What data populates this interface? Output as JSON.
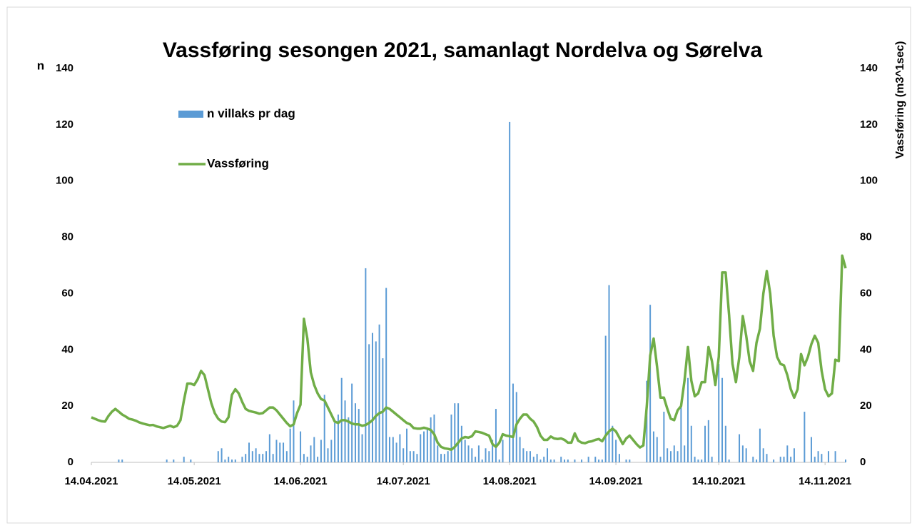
{
  "chart_data": {
    "type": "bar-line",
    "title": "Vassføring sesongen 2021, samanlagt Nordelva og Sørelva",
    "y_label": "n",
    "y2_label": "Vassføring (m3^1sec)",
    "xlim": [
      "14.04.2021",
      "20.11.2021"
    ],
    "xticks": [
      "14.04.2021",
      "14.05.2021",
      "14.06.2021",
      "14.07.2021",
      "14.08.2021",
      "14.09.2021",
      "14.10.2021",
      "14.11.2021"
    ],
    "ylim": [
      0,
      140
    ],
    "yticks": [
      0,
      20,
      40,
      60,
      80,
      100,
      120,
      140
    ],
    "y2lim": [
      0,
      140
    ],
    "y2ticks": [
      0,
      20,
      40,
      60,
      80,
      100,
      120,
      140
    ],
    "legend": "upper left",
    "grid": false,
    "x": [
      "14.04.2021",
      "15.04.2021",
      "16.04.2021",
      "17.04.2021",
      "18.04.2021",
      "19.04.2021",
      "20.04.2021",
      "21.04.2021",
      "22.04.2021",
      "23.04.2021",
      "24.04.2021",
      "25.04.2021",
      "26.04.2021",
      "27.04.2021",
      "28.04.2021",
      "29.04.2021",
      "30.04.2021",
      "01.05.2021",
      "02.05.2021",
      "03.05.2021",
      "04.05.2021",
      "05.05.2021",
      "06.05.2021",
      "07.05.2021",
      "08.05.2021",
      "09.05.2021",
      "10.05.2021",
      "11.05.2021",
      "12.05.2021",
      "13.05.2021",
      "14.05.2021",
      "15.05.2021",
      "16.05.2021",
      "17.05.2021",
      "18.05.2021",
      "19.05.2021",
      "20.05.2021",
      "21.05.2021",
      "22.05.2021",
      "23.05.2021",
      "24.05.2021",
      "25.05.2021",
      "26.05.2021",
      "27.05.2021",
      "28.05.2021",
      "29.05.2021",
      "30.05.2021",
      "31.05.2021",
      "01.06.2021",
      "02.06.2021",
      "03.06.2021",
      "04.06.2021",
      "05.06.2021",
      "06.06.2021",
      "07.06.2021",
      "08.06.2021",
      "09.06.2021",
      "10.06.2021",
      "11.06.2021",
      "12.06.2021",
      "13.06.2021",
      "14.06.2021",
      "15.06.2021",
      "16.06.2021",
      "17.06.2021",
      "18.06.2021",
      "19.06.2021",
      "20.06.2021",
      "21.06.2021",
      "22.06.2021",
      "23.06.2021",
      "24.06.2021",
      "25.06.2021",
      "26.06.2021",
      "27.06.2021",
      "28.06.2021",
      "29.06.2021",
      "30.06.2021",
      "01.07.2021",
      "02.07.2021",
      "03.07.2021",
      "04.07.2021",
      "05.07.2021",
      "06.07.2021",
      "07.07.2021",
      "08.07.2021",
      "09.07.2021",
      "10.07.2021",
      "11.07.2021",
      "12.07.2021",
      "13.07.2021",
      "14.07.2021",
      "15.07.2021",
      "16.07.2021",
      "17.07.2021",
      "18.07.2021",
      "19.07.2021",
      "20.07.2021",
      "21.07.2021",
      "22.07.2021",
      "23.07.2021",
      "24.07.2021",
      "25.07.2021",
      "26.07.2021",
      "27.07.2021",
      "28.07.2021",
      "29.07.2021",
      "30.07.2021",
      "31.07.2021",
      "01.08.2021",
      "02.08.2021",
      "03.08.2021",
      "04.08.2021",
      "05.08.2021",
      "06.08.2021",
      "07.08.2021",
      "08.08.2021",
      "09.08.2021",
      "10.08.2021",
      "11.08.2021",
      "12.08.2021",
      "13.08.2021",
      "14.08.2021",
      "15.08.2021",
      "16.08.2021",
      "17.08.2021",
      "18.08.2021",
      "19.08.2021",
      "20.08.2021",
      "21.08.2021",
      "22.08.2021",
      "23.08.2021",
      "24.08.2021",
      "25.08.2021",
      "26.08.2021",
      "27.08.2021",
      "28.08.2021",
      "29.08.2021",
      "30.08.2021",
      "31.08.2021",
      "01.09.2021",
      "02.09.2021",
      "03.09.2021",
      "04.09.2021",
      "05.09.2021",
      "06.09.2021",
      "07.09.2021",
      "08.09.2021",
      "09.09.2021",
      "10.09.2021",
      "11.09.2021",
      "12.09.2021",
      "13.09.2021",
      "14.09.2021",
      "15.09.2021",
      "16.09.2021",
      "17.09.2021",
      "18.09.2021",
      "19.09.2021",
      "20.09.2021",
      "21.09.2021",
      "22.09.2021",
      "23.09.2021",
      "24.09.2021",
      "25.09.2021",
      "26.09.2021",
      "27.09.2021",
      "28.09.2021",
      "29.09.2021",
      "30.09.2021",
      "01.10.2021",
      "02.10.2021",
      "03.10.2021",
      "04.10.2021",
      "05.10.2021",
      "06.10.2021",
      "07.10.2021",
      "08.10.2021",
      "09.10.2021",
      "10.10.2021",
      "11.10.2021",
      "12.10.2021",
      "13.10.2021",
      "14.10.2021",
      "15.10.2021",
      "16.10.2021",
      "17.10.2021",
      "18.10.2021",
      "19.10.2021",
      "20.10.2021",
      "21.10.2021",
      "22.10.2021",
      "23.10.2021",
      "24.10.2021",
      "25.10.2021",
      "26.10.2021",
      "27.10.2021",
      "28.10.2021",
      "29.10.2021",
      "30.10.2021",
      "31.10.2021",
      "01.11.2021",
      "02.11.2021",
      "03.11.2021",
      "04.11.2021",
      "05.11.2021",
      "06.11.2021",
      "07.11.2021",
      "08.11.2021",
      "09.11.2021",
      "10.11.2021",
      "11.11.2021",
      "12.11.2021",
      "13.11.2021",
      "14.11.2021",
      "15.11.2021",
      "16.11.2021",
      "17.11.2021",
      "18.11.2021",
      "19.11.2021",
      "20.11.2021"
    ],
    "series": [
      {
        "name": "n villaks pr dag",
        "kind": "bar",
        "color": "#5b9bd5",
        "values": [
          0,
          0,
          0,
          0,
          0,
          0,
          0,
          0,
          1,
          1,
          0,
          0,
          0,
          0,
          0,
          0,
          0,
          0,
          0,
          0,
          0,
          0,
          1,
          0,
          1,
          0,
          0,
          2,
          0,
          1,
          0,
          0,
          0,
          0,
          0,
          0,
          0,
          4,
          5,
          1,
          2,
          1,
          1,
          0,
          2,
          3,
          7,
          4,
          5,
          3,
          3,
          4,
          10,
          3,
          8,
          7,
          7,
          4,
          12,
          22,
          0,
          11,
          3,
          2,
          6,
          9,
          2,
          8,
          24,
          5,
          8,
          14,
          17,
          30,
          22,
          16,
          28,
          21,
          19,
          10,
          69,
          42,
          46,
          43,
          49,
          37,
          62,
          9,
          9,
          7,
          10,
          5,
          12,
          4,
          4,
          3,
          10,
          11,
          12,
          16,
          17,
          6,
          3,
          3,
          4,
          17,
          21,
          21,
          13,
          8,
          6,
          5,
          2,
          6,
          1,
          5,
          4,
          8,
          19,
          1,
          8,
          0,
          121,
          28,
          25,
          9,
          5,
          4,
          4,
          2,
          3,
          1,
          2,
          5,
          1,
          1,
          0,
          2,
          1,
          1,
          0,
          1,
          0,
          1,
          0,
          2,
          0,
          2,
          1,
          1,
          45,
          63,
          13,
          8,
          3,
          0,
          1,
          1,
          0,
          0,
          0,
          0,
          29,
          56,
          11,
          9,
          2,
          18,
          5,
          4,
          6,
          4,
          20,
          6,
          30,
          13,
          2,
          1,
          1,
          13,
          15,
          2,
          0,
          35,
          30,
          13,
          1,
          0,
          0,
          10,
          6,
          5,
          0,
          2,
          1,
          12,
          5,
          3,
          0,
          1,
          0,
          2,
          2,
          6,
          2,
          5,
          0,
          0,
          18,
          0,
          9,
          2,
          4,
          3,
          0,
          4,
          0,
          4,
          0,
          0,
          1
        ]
      },
      {
        "name": "Vassføring",
        "kind": "line",
        "axis": "y2",
        "color": "#70ad47",
        "values": [
          16,
          15.5,
          15,
          14.6,
          14.5,
          16.5,
          18,
          19,
          18,
          17,
          16.3,
          15.5,
          15.2,
          14.8,
          14.2,
          13.8,
          13.5,
          13.2,
          13.3,
          12.8,
          12.5,
          12.2,
          12.6,
          13,
          12.5,
          13,
          15,
          22,
          28,
          28,
          27.5,
          29.5,
          32.5,
          31,
          26,
          21,
          17.5,
          15.5,
          14.5,
          14.3,
          16,
          24,
          26,
          24.5,
          21.5,
          19,
          18.3,
          18,
          17.7,
          17.3,
          17.5,
          18.5,
          19.5,
          19.5,
          18.5,
          17,
          15.5,
          14,
          12.8,
          13.5,
          17.5,
          20.5,
          51,
          44,
          32,
          27.5,
          24.5,
          22.5,
          22,
          19.5,
          17,
          14.5,
          14,
          15,
          15,
          14.5,
          13.8,
          13.5,
          13.5,
          13,
          13.3,
          14,
          15,
          16.5,
          17.5,
          18,
          19.5,
          19,
          18,
          17,
          16,
          15,
          14,
          13.5,
          12.2,
          12,
          12,
          12.3,
          12,
          11.5,
          10,
          7,
          5.5,
          5,
          4.8,
          4.5,
          5.5,
          7,
          8.5,
          9,
          8.8,
          9.3,
          11,
          10.8,
          10.5,
          10,
          9.5,
          6.5,
          5.5,
          7,
          10,
          9.5,
          9.3,
          9,
          13.5,
          15.5,
          17,
          17,
          15.5,
          14.5,
          12.5,
          9.5,
          8,
          8,
          9.2,
          8.5,
          8.3,
          8.5,
          8,
          7,
          7,
          10.3,
          7.7,
          7,
          6.8,
          7.3,
          7.5,
          8,
          8.3,
          7.5,
          9.5,
          11,
          12,
          11,
          8.8,
          6.5,
          8.5,
          9.5,
          8,
          6.5,
          5.3,
          6,
          20,
          38,
          44,
          34,
          23,
          23,
          19,
          15.5,
          15,
          18.5,
          20,
          29,
          41,
          29,
          23.5,
          24.5,
          28.5,
          28.5,
          41,
          36,
          27.5,
          37.5,
          67.5,
          67.5,
          52.5,
          35,
          28.5,
          37.5,
          52,
          45,
          36,
          32.5,
          42.5,
          47.5,
          60,
          68,
          60,
          45,
          37.5,
          35,
          34.5,
          31,
          26,
          23,
          26,
          38.5,
          34.5,
          37.5,
          42,
          45,
          42.5,
          32.5,
          26,
          23.5,
          24.5,
          36.5,
          36,
          73.5,
          69
        ]
      }
    ]
  }
}
